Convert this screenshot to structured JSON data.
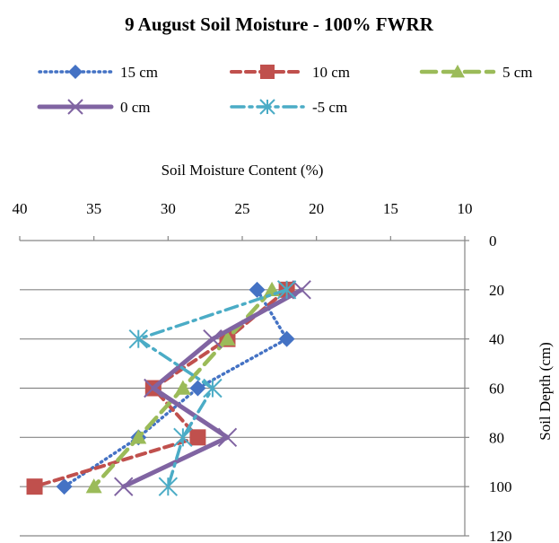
{
  "chart_data": {
    "type": "line",
    "title": "9 August Soil Moisture - 100% FWRR",
    "xlabel": "Soil Moisture Content (%)",
    "ylabel": "Soil Depth (cm)",
    "x_axis_position": "top",
    "x_reversed": true,
    "y_reversed": true,
    "xlim": [
      40,
      10
    ],
    "ylim": [
      0,
      120
    ],
    "xticks": [
      40,
      35,
      30,
      25,
      20,
      15,
      10
    ],
    "yticks": [
      0,
      20,
      40,
      60,
      80,
      100,
      120
    ],
    "xtick_labels": [
      "40",
      "35",
      "30",
      "25",
      "20",
      "15",
      "10"
    ],
    "ytick_labels": [
      "0",
      "20",
      "40",
      "60",
      "80",
      "100",
      "120"
    ],
    "grid": "horizontal",
    "legend_position": "top",
    "series": [
      {
        "name": "15 cm",
        "color": "#4472C4",
        "marker": "diamond",
        "dash": "dotted",
        "x": [
          24,
          22,
          28,
          32,
          37
        ],
        "y": [
          20,
          40,
          60,
          80,
          100
        ]
      },
      {
        "name": "10 cm",
        "color": "#C0504D",
        "marker": "square",
        "dash": "dashed",
        "x": [
          22,
          26,
          31,
          28,
          39
        ],
        "y": [
          20,
          40,
          60,
          80,
          100
        ]
      },
      {
        "name": "5 cm",
        "color": "#9BBB59",
        "marker": "triangle",
        "dash": "longdash",
        "x": [
          23,
          26,
          29,
          32,
          35
        ],
        "y": [
          20,
          40,
          60,
          80,
          100
        ]
      },
      {
        "name": "0 cm",
        "color": "#8064A2",
        "marker": "x",
        "dash": "solid",
        "x": [
          21,
          27,
          31,
          26,
          33
        ],
        "y": [
          20,
          40,
          60,
          80,
          100
        ]
      },
      {
        "name": "-5 cm",
        "color": "#4BACC6",
        "marker": "star",
        "dash": "dashdot",
        "x": [
          22,
          32,
          27,
          29,
          30
        ],
        "y": [
          20,
          40,
          60,
          80,
          100
        ]
      }
    ]
  }
}
